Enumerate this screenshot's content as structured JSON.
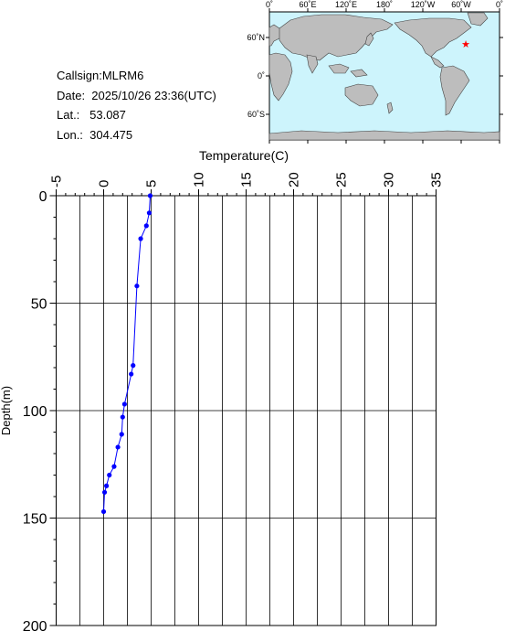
{
  "info": {
    "callsign": "Callsign:MLRM6",
    "date": "Date:  2025/10/26 23:36(UTC)",
    "lat": "Lat.:   53.087",
    "lon": "Lon.:  304.475"
  },
  "map": {
    "lon_labels": [
      "0˚",
      "60˚E",
      "120˚E",
      "180˚",
      "120˚W",
      "60˚W",
      "0˚"
    ],
    "lat_labels": [
      "60˚N",
      "0˚",
      "60˚S"
    ],
    "colors": {
      "ocean": "#cdf4fc",
      "land": "#bdbdbd",
      "marker": "#ff0000"
    },
    "marker_icon": "star-icon"
  },
  "chart_data": {
    "type": "line",
    "xlabel": "Temperature(C)",
    "ylabel": "Depth(m)",
    "xlim": [
      -5,
      35
    ],
    "ylim": [
      200,
      0
    ],
    "x_ticks": [
      -5,
      0,
      5,
      10,
      15,
      20,
      25,
      30,
      35
    ],
    "y_ticks": [
      0,
      50,
      100,
      150,
      200
    ],
    "grid": true,
    "series": [
      {
        "color": "#0000ff",
        "points": [
          {
            "t": 4.9,
            "d": 0
          },
          {
            "t": 4.8,
            "d": 8
          },
          {
            "t": 4.5,
            "d": 14
          },
          {
            "t": 3.9,
            "d": 20
          },
          {
            "t": 3.5,
            "d": 42
          },
          {
            "t": 3.1,
            "d": 79
          },
          {
            "t": 2.9,
            "d": 83
          },
          {
            "t": 2.2,
            "d": 97
          },
          {
            "t": 2.0,
            "d": 103
          },
          {
            "t": 1.9,
            "d": 111
          },
          {
            "t": 1.5,
            "d": 117
          },
          {
            "t": 1.1,
            "d": 126
          },
          {
            "t": 0.6,
            "d": 130
          },
          {
            "t": 0.3,
            "d": 135
          },
          {
            "t": 0.1,
            "d": 138
          },
          {
            "t": 0.0,
            "d": 147
          }
        ]
      }
    ]
  }
}
